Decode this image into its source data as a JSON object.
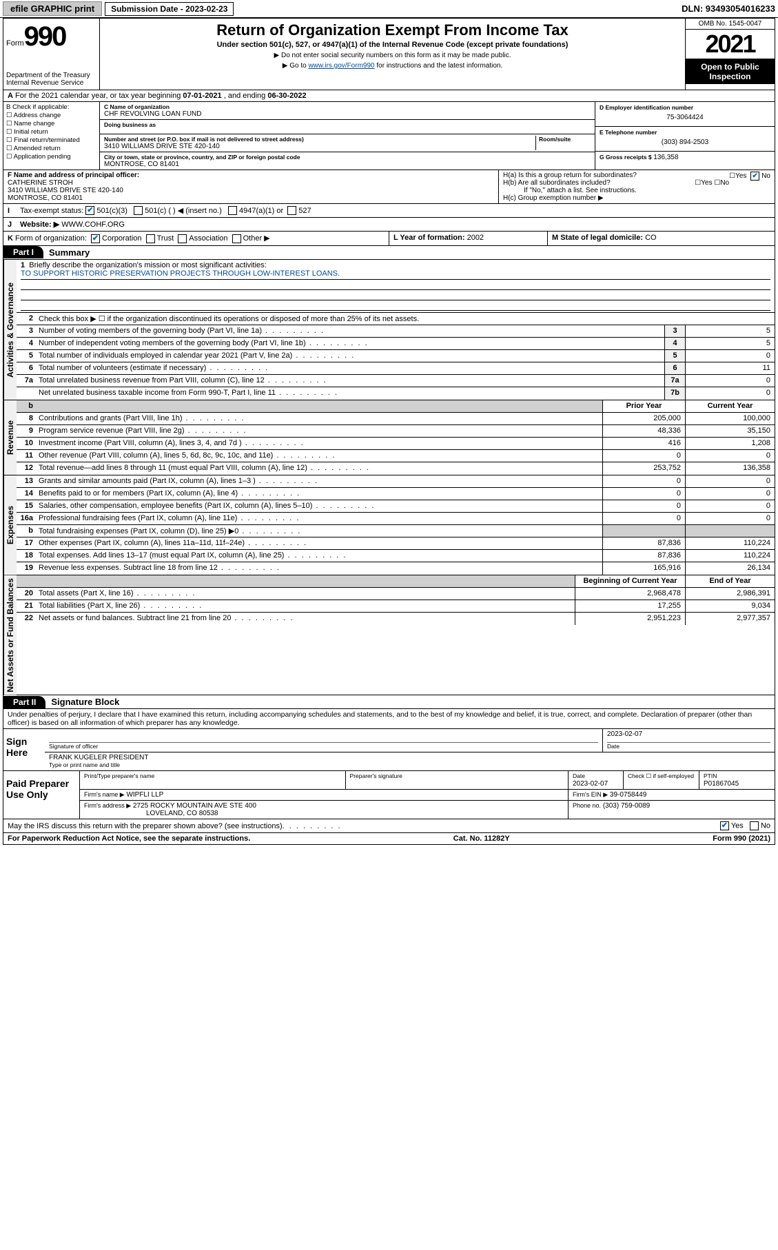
{
  "topbar": {
    "efile": "efile GRAPHIC print",
    "sub_label": "Submission Date - 2023-02-23",
    "dln": "DLN: 93493054016233"
  },
  "header": {
    "form_word": "Form",
    "form_num": "990",
    "dept": "Department of the Treasury",
    "irs": "Internal Revenue Service",
    "title": "Return of Organization Exempt From Income Tax",
    "sub": "Under section 501(c), 527, or 4947(a)(1) of the Internal Revenue Code (except private foundations)",
    "note1": "▶ Do not enter social security numbers on this form as it may be made public.",
    "note2_pre": "▶ Go to ",
    "note2_link": "www.irs.gov/Form990",
    "note2_post": " for instructions and the latest information.",
    "omb": "OMB No. 1545-0047",
    "year": "2021",
    "inspect1": "Open to Public",
    "inspect2": "Inspection"
  },
  "row_a": {
    "text_pre": "For the 2021 calendar year, or tax year beginning ",
    "begin": "07-01-2021",
    "mid": " , and ending ",
    "end": "06-30-2022",
    "lead": "A"
  },
  "col_b": {
    "title": "B Check if applicable:",
    "items": [
      "Address change",
      "Name change",
      "Initial return",
      "Final return/terminated",
      "Amended return",
      "Application pending"
    ]
  },
  "col_c": {
    "name_lbl": "C Name of organization",
    "name": "CHF REVOLVING LOAN FUND",
    "dba_lbl": "Doing business as",
    "dba": "",
    "street_lbl": "Number and street (or P.O. box if mail is not delivered to street address)",
    "room_lbl": "Room/suite",
    "street": "3410 WILLIAMS DRIVE STE 420-140",
    "city_lbl": "City or town, state or province, country, and ZIP or foreign postal code",
    "city": "MONTROSE, CO  81401"
  },
  "col_de": {
    "d_lbl": "D Employer identification number",
    "d_val": "75-3064424",
    "e_lbl": "E Telephone number",
    "e_val": "(303) 894-2503",
    "g_lbl": "G Gross receipts $",
    "g_val": "136,358"
  },
  "row_f": {
    "lbl": "F Name and address of principal officer:",
    "name": "CATHERINE STROH",
    "addr1": "3410 WILLIAMS DRIVE STE 420-140",
    "addr2": "MONTROSE, CO  81401"
  },
  "row_h": {
    "ha": "H(a)  Is this a group return for subordinates?",
    "ha_yes": "Yes",
    "ha_no": "No",
    "hb": "H(b)  Are all subordinates included?",
    "hb_yes": "Yes",
    "hb_no": "No",
    "hb_note": "If \"No,\" attach a list. See instructions.",
    "hc": "H(c)  Group exemption number ▶"
  },
  "row_i": {
    "lead": "I",
    "lbl": "Tax-exempt status:",
    "o1": "501(c)(3)",
    "o2": "501(c) (   ) ◀ (insert no.)",
    "o3": "4947(a)(1) or",
    "o4": "527"
  },
  "row_j": {
    "lead": "J",
    "lbl": "Website: ▶",
    "val": "WWW.COHF.ORG"
  },
  "row_k": {
    "lead": "K",
    "lbl": "Form of organization:",
    "o1": "Corporation",
    "o2": "Trust",
    "o3": "Association",
    "o4": "Other ▶"
  },
  "row_l": {
    "lbl": "L Year of formation:",
    "val": "2002"
  },
  "row_m": {
    "lbl": "M State of legal domicile:",
    "val": "CO"
  },
  "part1": {
    "hdr": "Part I",
    "title": "Summary",
    "rot1": "Activities & Governance",
    "rot2": "Revenue",
    "rot3": "Expenses",
    "rot4": "Net Assets or Fund Balances",
    "l1_lbl": "Briefly describe the organization's mission or most significant activities:",
    "l1_val": "TO SUPPORT HISTORIC PRESERVATION PROJECTS THROUGH LOW-INTEREST LOANS.",
    "l2": "Check this box ▶ ☐  if the organization discontinued its operations or disposed of more than 25% of its net assets.",
    "lines_ag": [
      {
        "n": "3",
        "t": "Number of voting members of the governing body (Part VI, line 1a)",
        "b": "3",
        "v": "5"
      },
      {
        "n": "4",
        "t": "Number of independent voting members of the governing body (Part VI, line 1b)",
        "b": "4",
        "v": "5"
      },
      {
        "n": "5",
        "t": "Total number of individuals employed in calendar year 2021 (Part V, line 2a)",
        "b": "5",
        "v": "0"
      },
      {
        "n": "6",
        "t": "Total number of volunteers (estimate if necessary)",
        "b": "6",
        "v": "11"
      },
      {
        "n": "7a",
        "t": "Total unrelated business revenue from Part VIII, column (C), line 12",
        "b": "7a",
        "v": "0"
      },
      {
        "n": "",
        "t": "Net unrelated business taxable income from Form 990-T, Part I, line 11",
        "b": "7b",
        "v": "0"
      }
    ],
    "col_prior": "Prior Year",
    "col_curr": "Current Year",
    "lines_rev": [
      {
        "n": "8",
        "t": "Contributions and grants (Part VIII, line 1h)",
        "p": "205,000",
        "c": "100,000"
      },
      {
        "n": "9",
        "t": "Program service revenue (Part VIII, line 2g)",
        "p": "48,336",
        "c": "35,150"
      },
      {
        "n": "10",
        "t": "Investment income (Part VIII, column (A), lines 3, 4, and 7d )",
        "p": "416",
        "c": "1,208"
      },
      {
        "n": "11",
        "t": "Other revenue (Part VIII, column (A), lines 5, 6d, 8c, 9c, 10c, and 11e)",
        "p": "0",
        "c": "0"
      },
      {
        "n": "12",
        "t": "Total revenue—add lines 8 through 11 (must equal Part VIII, column (A), line 12)",
        "p": "253,752",
        "c": "136,358"
      }
    ],
    "lines_exp": [
      {
        "n": "13",
        "t": "Grants and similar amounts paid (Part IX, column (A), lines 1–3 )",
        "p": "0",
        "c": "0"
      },
      {
        "n": "14",
        "t": "Benefits paid to or for members (Part IX, column (A), line 4)",
        "p": "0",
        "c": "0"
      },
      {
        "n": "15",
        "t": "Salaries, other compensation, employee benefits (Part IX, column (A), lines 5–10)",
        "p": "0",
        "c": "0"
      },
      {
        "n": "16a",
        "t": "Professional fundraising fees (Part IX, column (A), line 11e)",
        "p": "0",
        "c": "0"
      },
      {
        "n": "b",
        "t": "Total fundraising expenses (Part IX, column (D), line 25) ▶0",
        "p": "",
        "c": "",
        "shade": true
      },
      {
        "n": "17",
        "t": "Other expenses (Part IX, column (A), lines 11a–11d, 11f–24e)",
        "p": "87,836",
        "c": "110,224"
      },
      {
        "n": "18",
        "t": "Total expenses. Add lines 13–17 (must equal Part IX, column (A), line 25)",
        "p": "87,836",
        "c": "110,224"
      },
      {
        "n": "19",
        "t": "Revenue less expenses. Subtract line 18 from line 12",
        "p": "165,916",
        "c": "26,134"
      }
    ],
    "col_beg": "Beginning of Current Year",
    "col_end": "End of Year",
    "lines_na": [
      {
        "n": "20",
        "t": "Total assets (Part X, line 16)",
        "p": "2,968,478",
        "c": "2,986,391"
      },
      {
        "n": "21",
        "t": "Total liabilities (Part X, line 26)",
        "p": "17,255",
        "c": "9,034"
      },
      {
        "n": "22",
        "t": "Net assets or fund balances. Subtract line 21 from line 20",
        "p": "2,951,223",
        "c": "2,977,357"
      }
    ]
  },
  "part2": {
    "hdr": "Part II",
    "title": "Signature Block",
    "decl": "Under penalties of perjury, I declare that I have examined this return, including accompanying schedules and statements, and to the best of my knowledge and belief, it is true, correct, and complete. Declaration of preparer (other than officer) is based on all information of which preparer has any knowledge.",
    "sign_here": "Sign Here",
    "sig_officer": "Signature of officer",
    "sig_date_lbl": "Date",
    "sig_date": "2023-02-07",
    "officer_name": "FRANK KUGELER  PRESIDENT",
    "officer_sub": "Type or print name and title",
    "paid": "Paid Preparer Use Only",
    "prep_name_lbl": "Print/Type preparer's name",
    "prep_sig_lbl": "Preparer's signature",
    "prep_date_lbl": "Date",
    "prep_date": "2023-02-07",
    "prep_check": "Check ☐ if self-employed",
    "ptin_lbl": "PTIN",
    "ptin": "P01867045",
    "firm_name_lbl": "Firm's name    ▶",
    "firm_name": "WIPFLI LLP",
    "firm_ein_lbl": "Firm's EIN ▶",
    "firm_ein": "39-0758449",
    "firm_addr_lbl": "Firm's address ▶",
    "firm_addr1": "2725 ROCKY MOUNTAIN AVE STE 400",
    "firm_addr2": "LOVELAND, CO  80538",
    "phone_lbl": "Phone no.",
    "phone": "(303) 759-0089",
    "discuss": "May the IRS discuss this return with the preparer shown above? (see instructions)",
    "d_yes": "Yes",
    "d_no": "No"
  },
  "footer": {
    "left": "For Paperwork Reduction Act Notice, see the separate instructions.",
    "mid": "Cat. No. 11282Y",
    "right": "Form 990 (2021)"
  }
}
